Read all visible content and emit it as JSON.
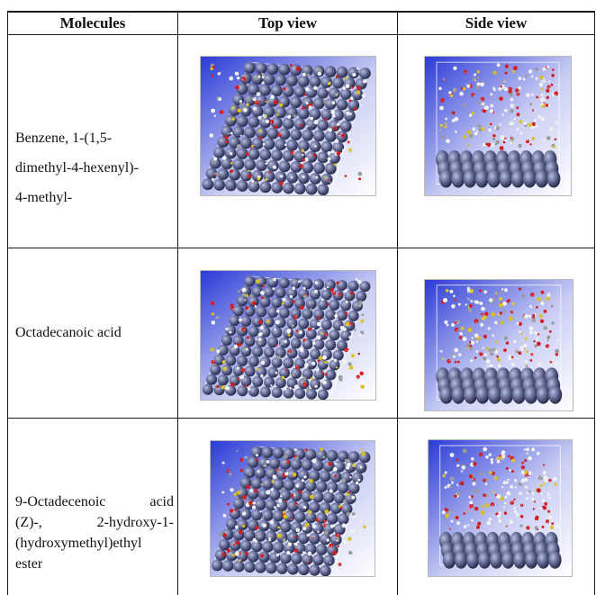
{
  "table": {
    "headers": {
      "molecules": "Molecules",
      "top_view": "Top view",
      "side_view": "Side view"
    },
    "rows": [
      {
        "molecule_lines": [
          "Benzene, 1-(1,5-",
          "dimethyl-4-hexenyl)-",
          "4-methyl-"
        ],
        "top_view_image": "molecular-dynamics-top-view",
        "side_view_image": "molecular-dynamics-side-view"
      },
      {
        "molecule_lines": [
          "Octadecanoic acid"
        ],
        "top_view_image": "molecular-dynamics-top-view",
        "side_view_image": "molecular-dynamics-side-view"
      },
      {
        "molecule_lines": [
          "9-Octadecenoic acid",
          "(Z)-, 2-hydroxy-1-",
          "(hydroxymethyl)ethyl",
          "ester"
        ],
        "top_view_image": "molecular-dynamics-top-view",
        "side_view_image": "molecular-dynamics-side-view"
      }
    ]
  },
  "colors": {
    "background_blue": "#2a3ad6",
    "surface_atom": "#545b86",
    "oxygen": "#d21e1e",
    "hydrogen": "#f2f2f2",
    "carbon": "#9a9a9a",
    "highlight": "#d8c020"
  }
}
